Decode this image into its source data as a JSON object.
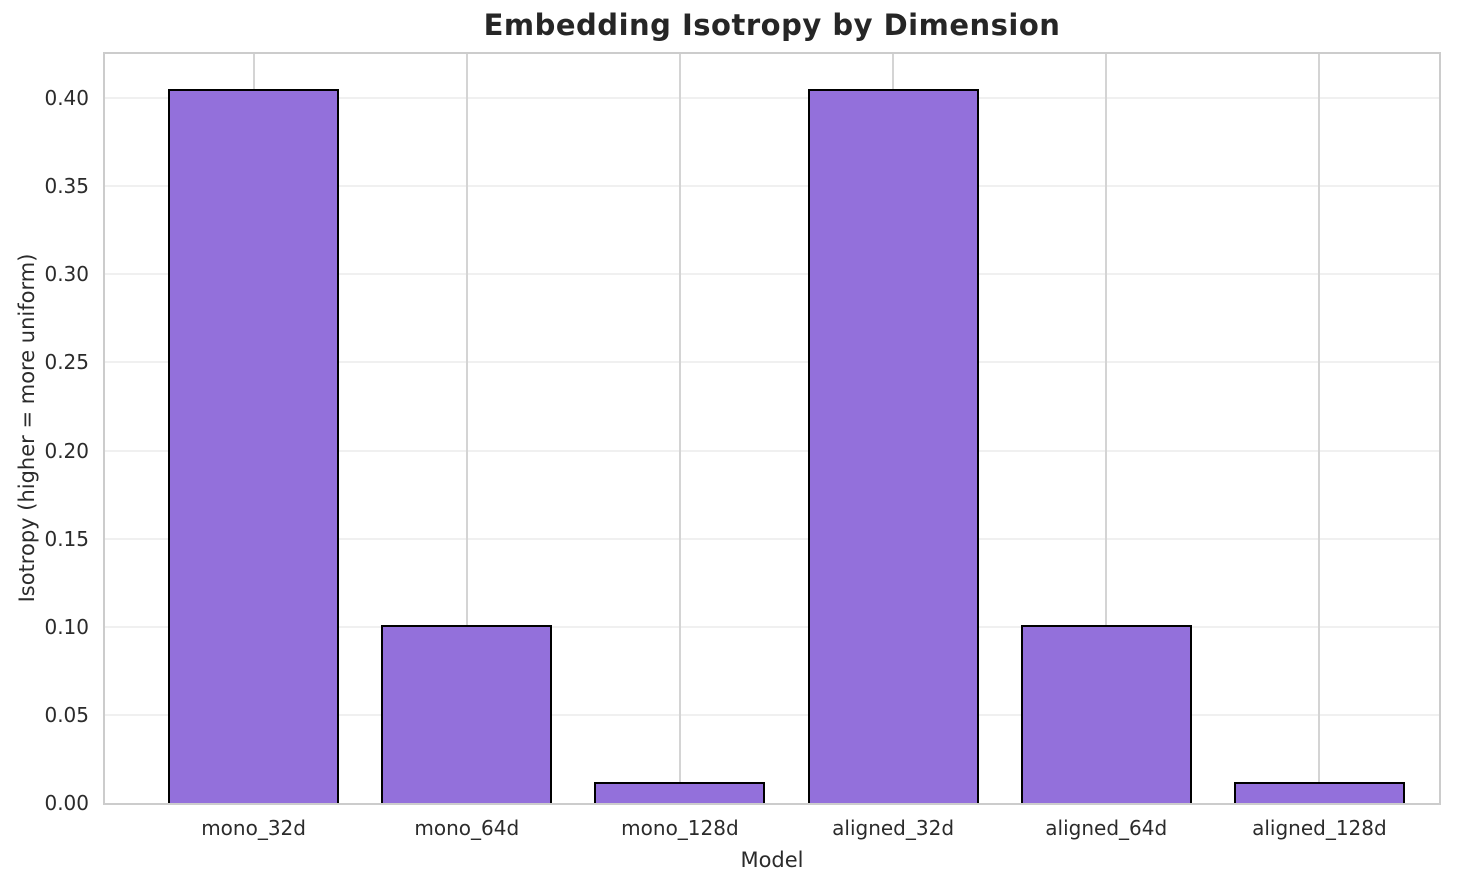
{
  "chart_data": {
    "type": "bar",
    "title": "Embedding Isotropy by Dimension",
    "xlabel": "Model",
    "ylabel": "Isotropy (higher = more uniform)",
    "categories": [
      "mono_32d",
      "mono_64d",
      "mono_128d",
      "aligned_32d",
      "aligned_64d",
      "aligned_128d"
    ],
    "values": [
      0.405,
      0.101,
      0.012,
      0.405,
      0.101,
      0.012
    ],
    "ylim": [
      0,
      0.425
    ],
    "y_ticks": [
      0.0,
      0.05,
      0.1,
      0.15,
      0.2,
      0.25,
      0.3,
      0.35,
      0.4
    ],
    "y_tick_labels": [
      "0.00",
      "0.05",
      "0.10",
      "0.15",
      "0.20",
      "0.25",
      "0.30",
      "0.35",
      "0.40"
    ],
    "grid": true,
    "legend": false,
    "bar_color": "#9370DB",
    "bar_edge_color": "#000000"
  }
}
